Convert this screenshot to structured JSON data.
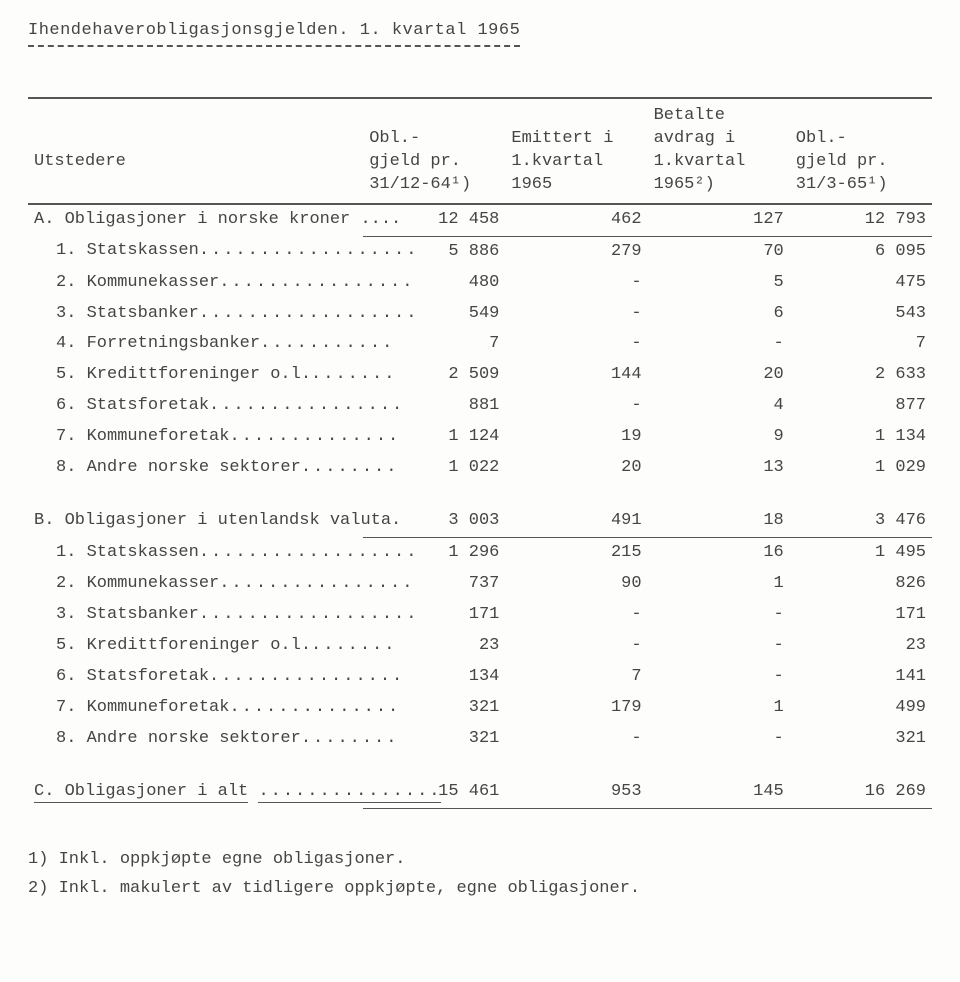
{
  "title": "Ihendehaverobligasjonsgjelden. 1. kvartal 1965",
  "header": {
    "utstedere": "Utstedere",
    "c1_l1": "Obl.-",
    "c1_l2": "gjeld pr.",
    "c1_l3": "31/12-64¹)",
    "c2_l1": "Emittert i",
    "c2_l2": "1.kvartal",
    "c2_l3": "1965",
    "c3_l1": "Betalte",
    "c3_l2": "avdrag i",
    "c3_l3": "1.kvartal",
    "c3_l4": "1965²)",
    "c4_l1": "Obl.-",
    "c4_l2": "gjeld pr.",
    "c4_l3": "31/3-65¹)"
  },
  "secA": {
    "label": "A. Obligasjoner i norske kroner ....",
    "v": [
      "12 458",
      "462",
      "127",
      "12 793"
    ],
    "rows": [
      {
        "label": "1. Statskassen ",
        "d": "..................",
        "v": [
          "5 886",
          "279",
          "70",
          "6 095"
        ]
      },
      {
        "label": "2. Kommunekasser ",
        "d": "................",
        "v": [
          "480",
          "-",
          "5",
          "475"
        ]
      },
      {
        "label": "3. Statsbanker ",
        "d": "..................",
        "v": [
          "549",
          "-",
          "6",
          "543"
        ]
      },
      {
        "label": "4. Forretningsbanker ",
        "d": "...........",
        "v": [
          "7",
          "-",
          "-",
          "7"
        ]
      },
      {
        "label": "5. Kredittforeninger o.l. ",
        "d": ".......",
        "v": [
          "2 509",
          "144",
          "20",
          "2 633"
        ]
      },
      {
        "label": "6. Statsforetak ",
        "d": "................",
        "v": [
          "881",
          "-",
          "4",
          "877"
        ]
      },
      {
        "label": "7. Kommuneforetak ",
        "d": "..............",
        "v": [
          "1 124",
          "19",
          "9",
          "1 134"
        ]
      },
      {
        "label": "8. Andre norske sektorer ",
        "d": "........",
        "v": [
          "1 022",
          "20",
          "13",
          "1 029"
        ]
      }
    ]
  },
  "secB": {
    "label": "B. Obligasjoner i utenlandsk valuta.",
    "v": [
      "3 003",
      "491",
      "18",
      "3 476"
    ],
    "rows": [
      {
        "label": "1. Statskassen ",
        "d": "..................",
        "v": [
          "1 296",
          "215",
          "16",
          "1 495"
        ]
      },
      {
        "label": "2. Kommunekasser ",
        "d": "................",
        "v": [
          "737",
          "90",
          "1",
          "826"
        ]
      },
      {
        "label": "3. Statsbanker ",
        "d": "..................",
        "v": [
          "171",
          "-",
          "-",
          "171"
        ]
      },
      {
        "label": "5. Kredittforeninger o.l. ",
        "d": ".......",
        "v": [
          "23",
          "-",
          "-",
          "23"
        ]
      },
      {
        "label": "6. Statsforetak ",
        "d": "................",
        "v": [
          "134",
          "7",
          "-",
          "141"
        ]
      },
      {
        "label": "7. Kommuneforetak ",
        "d": "..............",
        "v": [
          "321",
          "179",
          "1",
          "499"
        ]
      },
      {
        "label": "8. Andre norske sektorer ",
        "d": "........",
        "v": [
          "321",
          "-",
          "-",
          "321"
        ]
      }
    ]
  },
  "secC": {
    "label": "C. Obligasjoner i alt",
    "d": "...............",
    "v": [
      "15 461",
      "953",
      "145",
      "16 269"
    ]
  },
  "footnotes": {
    "f1": "1) Inkl. oppkjøpte egne obligasjoner.",
    "f2": "2) Inkl. makulert av tidligere oppkjøpte, egne obligasjoner."
  }
}
